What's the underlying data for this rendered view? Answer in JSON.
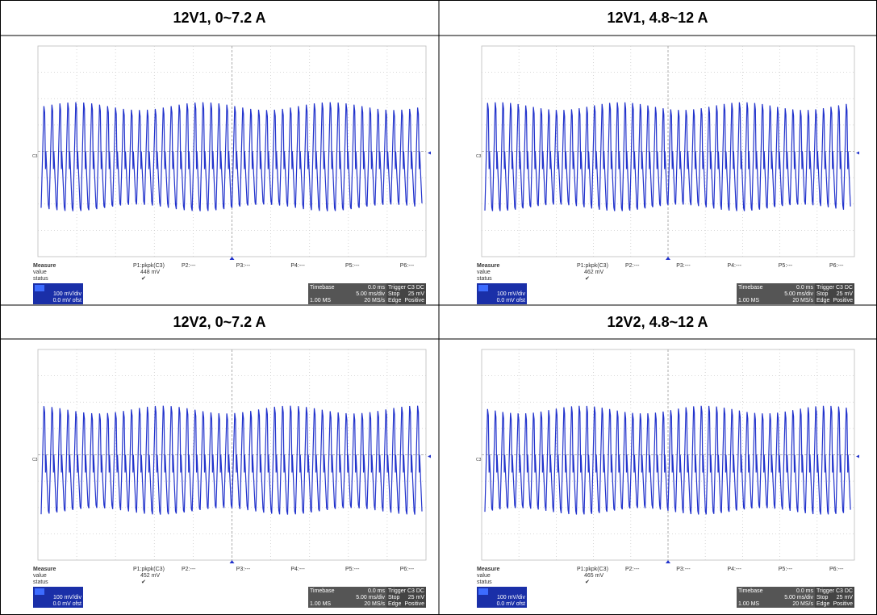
{
  "panels": [
    {
      "title": "12V1, 0~7.2 A",
      "measure_label": "Measure",
      "value_label": "value",
      "status_label": "status",
      "param": "P1:pkpk(C3)",
      "value": "448 mV",
      "params": [
        "P2:---",
        "P3:---",
        "P4:---",
        "P5:---",
        "P6:---"
      ],
      "channel_marker": "C3",
      "channel_scale": "100 mV/div",
      "channel_offset": "0.0 mV ofst",
      "timebase_label": "Timebase",
      "timebase_delay": "0.0 ms",
      "timebase_div": "5.00 ms/div",
      "sample_points": "1.00 MS",
      "sample_rate": "20 MS/s",
      "trigger_label": "Trigger",
      "trigger_channel": "C3 DC",
      "trigger_mode": "Stop",
      "trigger_level": "25 mV",
      "trigger_type": "Edge",
      "trigger_slope": "Positive"
    },
    {
      "title": "12V1, 4.8~12 A",
      "measure_label": "Measure",
      "value_label": "value",
      "status_label": "status",
      "param": "P1:pkpk(C3)",
      "value": "462 mV",
      "params": [
        "P2:---",
        "P3:---",
        "P4:---",
        "P5:---",
        "P6:---"
      ],
      "channel_marker": "C3",
      "channel_scale": "100 mV/div",
      "channel_offset": "0.0 mV ofst",
      "timebase_label": "Timebase",
      "timebase_delay": "0.0 ms",
      "timebase_div": "5.00 ms/div",
      "sample_points": "1.00 MS",
      "sample_rate": "20 MS/s",
      "trigger_label": "Trigger",
      "trigger_channel": "C3 DC",
      "trigger_mode": "Stop",
      "trigger_level": "25 mV",
      "trigger_type": "Edge",
      "trigger_slope": "Positive"
    },
    {
      "title": "12V2, 0~7.2 A",
      "measure_label": "Measure",
      "value_label": "value",
      "status_label": "status",
      "param": "P1:pkpk(C3)",
      "value": "452 mV",
      "params": [
        "P2:---",
        "P3:---",
        "P4:---",
        "P5:---",
        "P6:---"
      ],
      "channel_marker": "C3",
      "channel_scale": "100 mV/div",
      "channel_offset": "0.0 mV ofst",
      "timebase_label": "Timebase",
      "timebase_delay": "0.0 ms",
      "timebase_div": "5.00 ms/div",
      "sample_points": "1.00 MS",
      "sample_rate": "20 MS/s",
      "trigger_label": "Trigger",
      "trigger_channel": "C3 DC",
      "trigger_mode": "Stop",
      "trigger_level": "25 mV",
      "trigger_type": "Edge",
      "trigger_slope": "Positive"
    },
    {
      "title": "12V2, 4.8~12 A",
      "measure_label": "Measure",
      "value_label": "value",
      "status_label": "status",
      "param": "P1:pkpk(C3)",
      "value": "465 mV",
      "params": [
        "P2:---",
        "P3:---",
        "P4:---",
        "P5:---",
        "P6:---"
      ],
      "channel_marker": "C3",
      "channel_scale": "100 mV/div",
      "channel_offset": "0.0 mV ofst",
      "timebase_label": "Timebase",
      "timebase_delay": "0.0 ms",
      "timebase_div": "5.00 ms/div",
      "sample_points": "1.00 MS",
      "sample_rate": "20 MS/s",
      "trigger_label": "Trigger",
      "trigger_channel": "C3 DC",
      "trigger_mode": "Stop",
      "trigger_level": "25 mV",
      "trigger_type": "Edge",
      "trigger_slope": "Positive"
    }
  ]
}
